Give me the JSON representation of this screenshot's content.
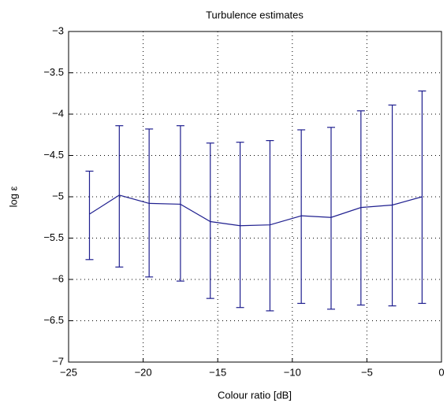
{
  "chart_data": {
    "type": "errorbar",
    "title": "Turbulence estimates",
    "xlabel": "Colour ratio [dB]",
    "ylabel": "log ε",
    "x": [
      -23.6,
      -21.6,
      -19.6,
      -17.5,
      -15.5,
      -13.5,
      -11.5,
      -9.4,
      -7.4,
      -5.4,
      -3.3,
      -1.3
    ],
    "series": [
      {
        "color": "#1f1f8f",
        "values": [
          -5.21,
          -4.98,
          -5.08,
          -5.09,
          -5.3,
          -5.35,
          -5.34,
          -5.23,
          -5.25,
          -5.13,
          -5.1,
          -5.0
        ],
        "lower": [
          -5.76,
          -5.85,
          -5.97,
          -6.02,
          -6.23,
          -6.34,
          -6.38,
          -6.29,
          -6.36,
          -6.31,
          -6.32,
          -6.29
        ],
        "upper": [
          -4.69,
          -4.14,
          -4.18,
          -4.14,
          -4.35,
          -4.34,
          -4.32,
          -4.19,
          -4.16,
          -3.96,
          -3.89,
          -3.72
        ]
      }
    ],
    "xlim": [
      -25,
      0
    ],
    "xticks": [
      {
        "value": -25,
        "label": "−25"
      },
      {
        "value": -20,
        "label": "−20"
      },
      {
        "value": -15,
        "label": "−15"
      },
      {
        "value": -10,
        "label": "−10"
      },
      {
        "value": -5,
        "label": "−5"
      },
      0
    ],
    "ylim": [
      -7,
      -3
    ],
    "yticks": [
      {
        "value": -7,
        "label": "−7"
      },
      {
        "value": -6.5,
        "label": "−6.5"
      },
      {
        "value": -6,
        "label": "−6"
      },
      {
        "value": -5.5,
        "label": "−5.5"
      },
      {
        "value": -5,
        "label": "−5"
      },
      {
        "value": -4.5,
        "label": "−4.5"
      },
      {
        "value": -4,
        "label": "−4"
      },
      {
        "value": -3.5,
        "label": "−3.5"
      },
      {
        "value": -3,
        "label": "−3"
      }
    ],
    "grid": true
  }
}
